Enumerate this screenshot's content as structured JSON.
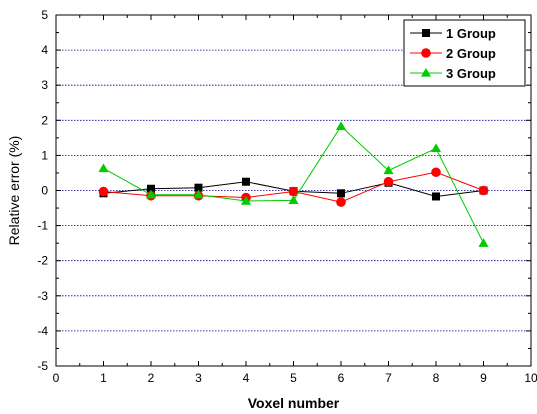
{
  "chart_data": {
    "type": "line",
    "xlabel": "Voxel number",
    "ylabel": "Relative error (%)",
    "xlim": [
      0,
      10
    ],
    "ylim": [
      -5,
      5
    ],
    "xticks": [
      0,
      1,
      2,
      3,
      4,
      5,
      6,
      7,
      8,
      9,
      10
    ],
    "yticks": [
      5,
      4,
      3,
      2,
      1,
      0,
      -1,
      -2,
      -3,
      -4,
      -5
    ],
    "grid": "horizontal dotted",
    "legend_position": "top-right",
    "x": [
      1,
      2,
      3,
      4,
      5,
      6,
      7,
      8,
      9
    ],
    "series": [
      {
        "name": "1 Group",
        "marker": "square",
        "color": "#000000",
        "values": [
          -0.08,
          0.05,
          0.08,
          0.25,
          -0.02,
          -0.08,
          0.22,
          -0.17,
          0.0
        ]
      },
      {
        "name": "2 Group",
        "marker": "circle",
        "color": "#ff0000",
        "values": [
          -0.03,
          -0.15,
          -0.15,
          -0.2,
          -0.03,
          -0.33,
          0.25,
          0.52,
          0.0
        ]
      },
      {
        "name": "3 Group",
        "marker": "triangle",
        "color": "#00cc00",
        "values": [
          0.63,
          -0.12,
          -0.12,
          -0.3,
          -0.28,
          1.83,
          0.57,
          1.2,
          -1.5
        ]
      }
    ]
  },
  "colors": {
    "grid": "#00008b",
    "axis": "#000000",
    "background": "#ffffff"
  }
}
